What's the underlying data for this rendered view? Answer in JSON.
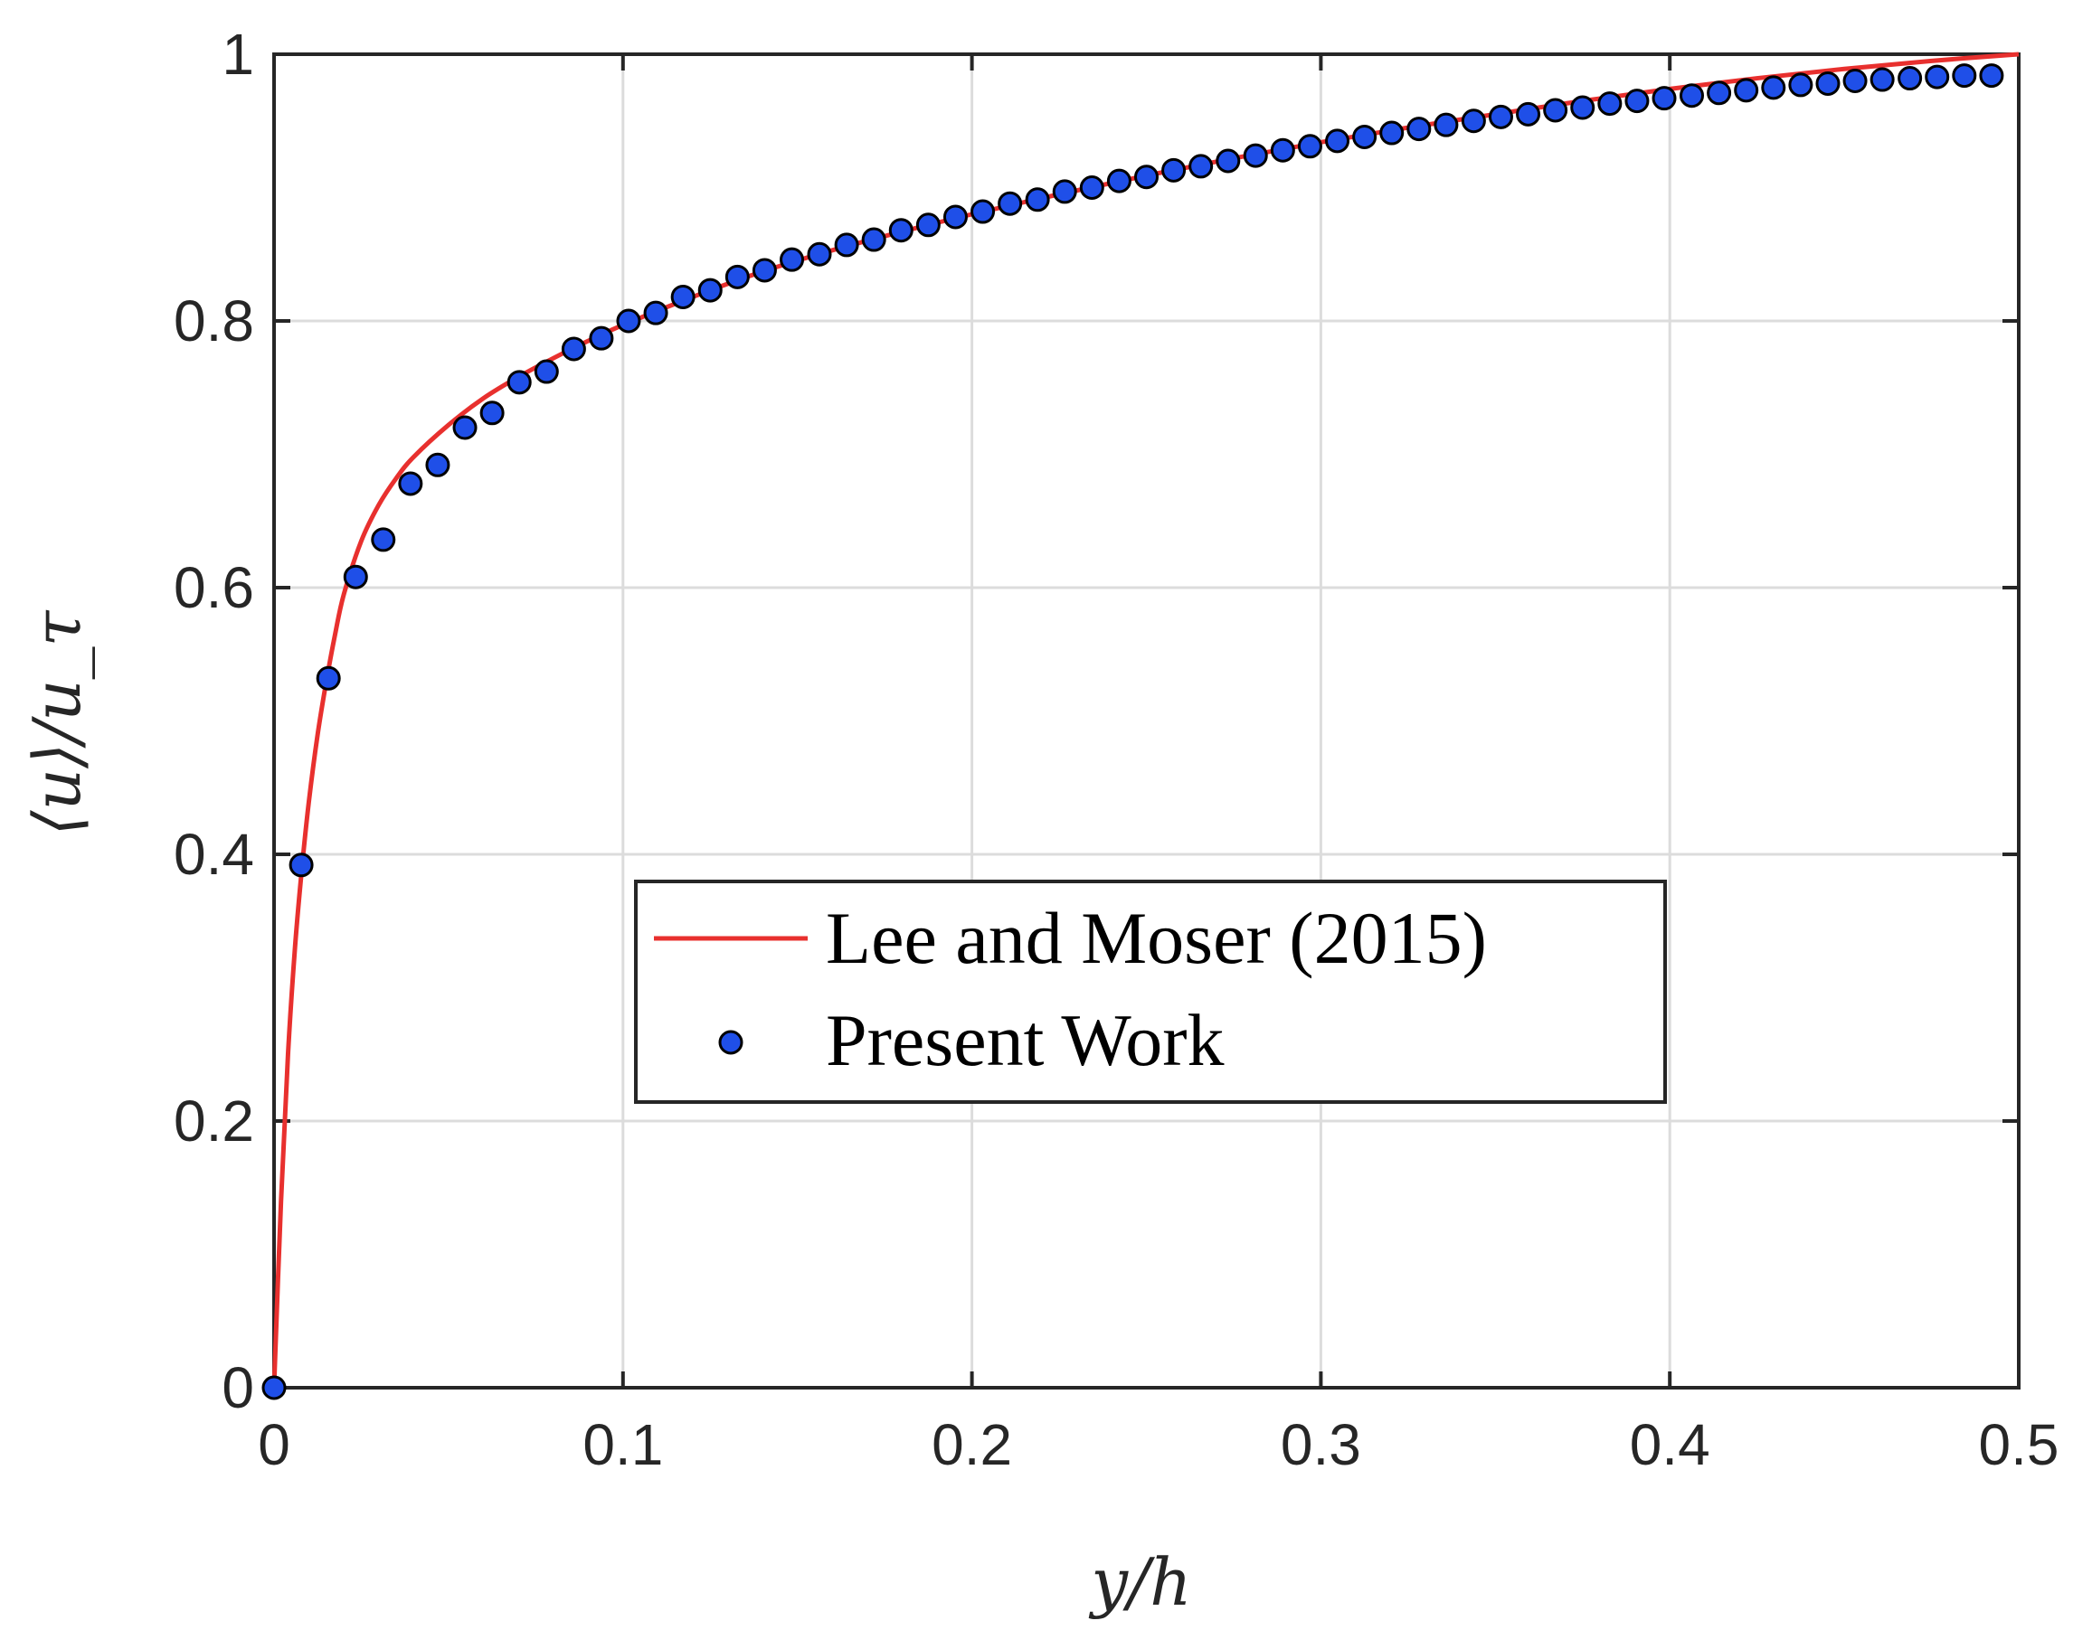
{
  "chart_data": {
    "type": "line",
    "xlabel": "y/h",
    "ylabel": "⟨u⟩/u_τ",
    "xlim": [
      0,
      0.5
    ],
    "ylim": [
      0,
      1
    ],
    "x_ticks": [
      "0",
      "0.1",
      "0.2",
      "0.3",
      "0.4",
      "0.5"
    ],
    "y_ticks": [
      "0",
      "0.2",
      "0.4",
      "0.6",
      "0.8",
      "1"
    ],
    "grid": true,
    "legend_position": "center",
    "series": [
      {
        "name": "Lee and Moser (2015)",
        "style": "line",
        "color": "#e8302e",
        "x": [
          0,
          0.002,
          0.004,
          0.006,
          0.008,
          0.01,
          0.0125,
          0.015,
          0.0175,
          0.02,
          0.025,
          0.03,
          0.035,
          0.04,
          0.05,
          0.06,
          0.07,
          0.08,
          0.09,
          0.1,
          0.12,
          0.14,
          0.16,
          0.18,
          0.2,
          0.225,
          0.25,
          0.275,
          0.3,
          0.325,
          0.35,
          0.375,
          0.4,
          0.425,
          0.45,
          0.475,
          0.5
        ],
        "y": [
          0,
          0.14,
          0.25,
          0.33,
          0.39,
          0.44,
          0.49,
          0.53,
          0.565,
          0.595,
          0.635,
          0.662,
          0.682,
          0.698,
          0.722,
          0.742,
          0.758,
          0.772,
          0.785,
          0.797,
          0.818,
          0.837,
          0.853,
          0.867,
          0.88,
          0.895,
          0.909,
          0.922,
          0.934,
          0.945,
          0.955,
          0.965,
          0.974,
          0.982,
          0.989,
          0.995,
          1.0
        ]
      },
      {
        "name": "Present Work",
        "style": "markers",
        "color": "#1f4fe8",
        "x": [
          0,
          0.0078,
          0.0156,
          0.0234,
          0.0313,
          0.0391,
          0.0469,
          0.0547,
          0.0625,
          0.0703,
          0.0781,
          0.0859,
          0.0938,
          0.1016,
          0.1094,
          0.1172,
          0.125,
          0.1328,
          0.1406,
          0.1484,
          0.1563,
          0.1641,
          0.1719,
          0.1797,
          0.1875,
          0.1953,
          0.2031,
          0.2109,
          0.2188,
          0.2266,
          0.2344,
          0.2422,
          0.25,
          0.2578,
          0.2656,
          0.2734,
          0.2813,
          0.2891,
          0.2969,
          0.3047,
          0.3125,
          0.3203,
          0.3281,
          0.3359,
          0.3438,
          0.3516,
          0.3594,
          0.3672,
          0.375,
          0.3828,
          0.3906,
          0.3984,
          0.4063,
          0.4141,
          0.4219,
          0.4297,
          0.4375,
          0.4453,
          0.4531,
          0.4609,
          0.4688,
          0.4766,
          0.4844,
          0.4922
        ],
        "y": [
          0,
          0.392,
          0.532,
          0.608,
          0.636,
          0.678,
          0.692,
          0.72,
          0.731,
          0.754,
          0.762,
          0.779,
          0.787,
          0.8,
          0.806,
          0.818,
          0.823,
          0.833,
          0.838,
          0.846,
          0.85,
          0.857,
          0.861,
          0.868,
          0.872,
          0.878,
          0.882,
          0.888,
          0.891,
          0.897,
          0.9,
          0.905,
          0.908,
          0.913,
          0.916,
          0.92,
          0.924,
          0.928,
          0.931,
          0.935,
          0.938,
          0.941,
          0.944,
          0.947,
          0.95,
          0.953,
          0.955,
          0.958,
          0.96,
          0.963,
          0.965,
          0.967,
          0.969,
          0.971,
          0.973,
          0.975,
          0.977,
          0.978,
          0.98,
          0.981,
          0.982,
          0.983,
          0.984,
          0.984
        ]
      }
    ]
  }
}
